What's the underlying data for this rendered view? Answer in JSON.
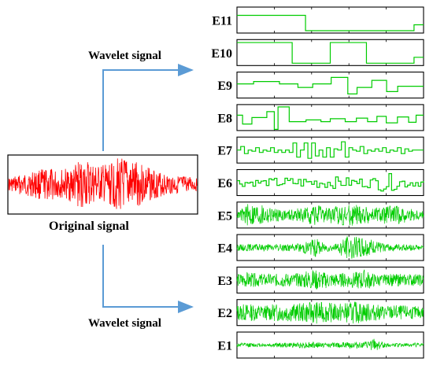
{
  "original": {
    "caption": "Original signal",
    "color": "#ff0000"
  },
  "arrows": {
    "top_label": "Wavelet signal",
    "bottom_label": "Wavelet signal",
    "color": "#5b9bd5"
  },
  "components": {
    "color": "#00cc00",
    "items": [
      {
        "label": "E11",
        "kind": "step",
        "levels": [
          0.4,
          0.4,
          0.4,
          0.4,
          0.4,
          0.4,
          0.4,
          0.4,
          0.4,
          0.4,
          0.4,
          0.4,
          0.4,
          0.4,
          0.4,
          0.4,
          0.4,
          0.4,
          0.4,
          0.4,
          0.4,
          0.4,
          0.4,
          0.4,
          0.4,
          0.4,
          0.4,
          0.4,
          0.4,
          0.4,
          0.4,
          0.4,
          0.4,
          0.4,
          0.4,
          0.4,
          -0.9,
          -0.9,
          -0.9,
          -0.9,
          -0.9,
          -0.9,
          -0.9,
          -0.9,
          -0.9,
          -0.9,
          -0.9,
          -0.9,
          -0.9,
          -0.9,
          -0.9,
          -0.9,
          -0.9,
          -0.9,
          -0.9,
          -0.9,
          -0.9,
          -0.9,
          -0.9,
          -0.9,
          -0.9,
          -0.9,
          -0.9,
          -0.9,
          -0.9,
          -0.9,
          -0.9,
          -0.9,
          -0.9,
          -0.9,
          -0.9,
          -0.9,
          -0.9,
          -0.9,
          -0.9,
          -0.9,
          -0.9,
          -0.9,
          -0.9,
          -0.9,
          -0.9,
          -0.9,
          -0.9,
          -0.9,
          -0.9,
          -0.9,
          -0.9,
          -0.9,
          -0.9,
          -0.9,
          -0.9,
          -0.9,
          -0.9,
          -0.4,
          -0.4,
          -0.4,
          -0.4,
          -0.4
        ]
      },
      {
        "label": "E10",
        "kind": "step",
        "levels": [
          0.85,
          0.85,
          0.85,
          0.85,
          0.85,
          0.85,
          0.85,
          0.85,
          0.85,
          0.85,
          0.85,
          0.85,
          0.85,
          0.85,
          0.85,
          0.85,
          0.85,
          0.85,
          0.85,
          0.85,
          0.85,
          0.85,
          0.85,
          0.85,
          0.85,
          0.85,
          0.85,
          0.85,
          0.85,
          -0.9,
          -0.9,
          -0.9,
          -0.9,
          -0.9,
          -0.9,
          -0.9,
          -0.9,
          -0.9,
          -0.9,
          -0.9,
          -0.9,
          -0.9,
          -0.9,
          -0.9,
          -0.9,
          -0.9,
          -0.9,
          -0.9,
          -0.9,
          0.85,
          0.85,
          0.85,
          0.85,
          0.85,
          0.85,
          0.85,
          0.85,
          0.85,
          0.85,
          0.85,
          0.85,
          0.85,
          0.85,
          0.85,
          0.85,
          0.85,
          0.85,
          0.85,
          -0.9,
          -0.9,
          -0.9,
          -0.9,
          -0.9,
          -0.9,
          -0.9,
          -0.9,
          -0.9,
          -0.9,
          -0.9,
          -0.9,
          -0.9,
          -0.9,
          -0.9,
          -0.9,
          -0.9,
          -0.9,
          -0.9,
          -0.9,
          -0.9,
          -0.9,
          -0.9,
          -0.9,
          -0.9,
          -0.4,
          -0.4,
          -0.4,
          -0.4,
          -0.4
        ]
      },
      {
        "label": "E9",
        "kind": "step",
        "levels": [
          0.1,
          0.1,
          0.1,
          0.1,
          0.1,
          0.1,
          0.1,
          0.1,
          0.1,
          0.3,
          0.3,
          0.3,
          0.3,
          0.3,
          0.3,
          0.3,
          0.3,
          0.3,
          0.3,
          0.3,
          0.3,
          0.3,
          0.3,
          0.1,
          0.1,
          0.1,
          0.1,
          0.1,
          0.1,
          0.1,
          0.1,
          0.1,
          0.1,
          -0.2,
          -0.2,
          -0.2,
          -0.2,
          -0.2,
          -0.2,
          -0.2,
          -0.2,
          0.1,
          0.1,
          0.1,
          0.1,
          0.1,
          0.1,
          0.1,
          0.1,
          0.1,
          0.1,
          0.65,
          0.65,
          0.65,
          0.65,
          0.65,
          0.65,
          0.65,
          0.65,
          0.65,
          -0.75,
          -0.75,
          -0.75,
          -0.75,
          -0.75,
          -0.2,
          -0.2,
          -0.2,
          -0.2,
          -0.2,
          -0.2,
          -0.2,
          -0.2,
          0.4,
          0.4,
          0.4,
          0.4,
          0.4,
          0.4,
          0.4,
          0.4,
          -0.55,
          -0.55,
          -0.55,
          -0.55,
          -0.55,
          -0.55,
          -0.1,
          -0.1,
          -0.1,
          -0.1,
          -0.1,
          -0.1,
          -0.1,
          -0.1,
          -0.1,
          -0.1,
          -0.1,
          -0.1,
          -0.1,
          -0.1
        ]
      },
      {
        "label": "E8",
        "kind": "step",
        "levels": [
          0.2,
          0.2,
          0.2,
          -0.55,
          -0.55,
          -0.55,
          -0.55,
          -0.55,
          0.0,
          0.0,
          0.0,
          0.0,
          0.0,
          0.0,
          0.0,
          0.0,
          0.5,
          0.5,
          0.5,
          0.5,
          -1.0,
          -1.0,
          0.9,
          0.9,
          0.9,
          0.9,
          0.9,
          0.9,
          -0.35,
          -0.35,
          -0.35,
          -0.35,
          -0.35,
          -0.35,
          -0.35,
          -0.35,
          -0.35,
          -0.2,
          -0.2,
          -0.2,
          -0.2,
          -0.2,
          -0.2,
          -0.2,
          -0.2,
          -0.35,
          -0.35,
          -0.35,
          -0.35,
          -0.35,
          -0.1,
          -0.1,
          -0.1,
          -0.1,
          -0.1,
          -0.1,
          -0.1,
          -0.1,
          -0.35,
          -0.35,
          -0.35,
          -0.35,
          -0.35,
          -0.35,
          -0.05,
          -0.05,
          -0.05,
          -0.05,
          -0.05,
          -0.05,
          -0.35,
          -0.35,
          -0.35,
          -0.35,
          -0.35,
          0.1,
          0.1,
          0.1,
          0.1,
          0.1,
          -0.45,
          -0.45,
          -0.45,
          -0.45,
          -0.45,
          -0.45,
          0.05,
          0.05,
          0.05,
          0.05,
          0.05,
          0.05,
          -0.4,
          -0.4,
          -0.4,
          -0.4,
          0.2,
          0.2,
          0.2,
          0.2
        ]
      },
      {
        "label": "E7",
        "kind": "step",
        "levels": [
          0.0,
          0.0,
          0.3,
          0.3,
          -0.3,
          -0.3,
          0.0,
          0.0,
          -0.1,
          -0.1,
          0.2,
          0.2,
          -0.2,
          -0.2,
          0.0,
          0.0,
          -0.1,
          -0.1,
          0.2,
          0.2,
          -0.2,
          -0.2,
          0.0,
          0.0,
          -0.2,
          -0.2,
          0.0,
          0.0,
          -0.2,
          -0.2,
          0.6,
          0.6,
          -0.6,
          -0.6,
          0.0,
          0.0,
          0.6,
          0.6,
          -0.7,
          -0.7,
          0.6,
          0.6,
          -0.5,
          -0.5,
          0.0,
          0.0,
          -0.6,
          -0.6,
          0.2,
          0.2,
          -0.6,
          -0.6,
          0.1,
          0.1,
          0.0,
          0.0,
          0.7,
          0.7,
          -0.6,
          -0.6,
          0.2,
          0.2,
          0.0,
          0.0,
          -0.1,
          -0.1,
          0.3,
          0.3,
          -0.3,
          -0.3,
          0.0,
          0.0,
          -0.1,
          -0.1,
          0.1,
          0.1,
          -0.1,
          -0.1,
          0.2,
          0.2,
          -0.2,
          -0.2,
          0.0,
          0.0,
          -0.1,
          -0.1,
          0.2,
          0.2,
          -0.3,
          -0.3,
          0.1,
          0.1,
          -0.1,
          -0.1,
          0.0,
          0.0,
          0.0,
          0.0,
          0.0,
          0.0
        ]
      },
      {
        "label": "E6",
        "kind": "osc",
        "amp": [
          0.35,
          0.35,
          0.3,
          0.3,
          0.45,
          0.45,
          0.45,
          0.45,
          0.5,
          0.5,
          0.5,
          0.45,
          0.4,
          0.45,
          0.45,
          0.9,
          0.6,
          0.5,
          0.35,
          0.3
        ],
        "period": 4,
        "seed": 6
      },
      {
        "label": "E5",
        "kind": "noise",
        "amp": [
          0.2,
          0.95,
          1.0,
          0.8,
          0.55,
          0.45,
          0.55,
          0.7,
          0.85,
          0.7,
          0.75,
          0.9,
          0.95,
          0.8,
          0.6,
          0.75,
          0.85,
          0.65,
          0.5,
          0.35
        ],
        "seed": 5
      },
      {
        "label": "E4",
        "kind": "noise",
        "amp": [
          0.25,
          0.3,
          0.3,
          0.3,
          0.3,
          0.3,
          0.3,
          0.55,
          0.8,
          0.35,
          0.3,
          0.95,
          1.0,
          0.9,
          0.55,
          0.35,
          0.3,
          0.3,
          0.25,
          0.2
        ],
        "seed": 4
      },
      {
        "label": "E3",
        "kind": "noise",
        "amp": [
          0.55,
          0.65,
          0.55,
          0.5,
          0.55,
          0.6,
          0.55,
          0.75,
          0.9,
          0.7,
          0.6,
          0.6,
          0.7,
          0.9,
          0.55,
          0.45,
          0.55,
          0.5,
          0.5,
          0.5
        ],
        "seed": 3
      },
      {
        "label": "E2",
        "kind": "noise",
        "amp": [
          0.7,
          0.75,
          0.7,
          0.65,
          0.75,
          0.8,
          0.75,
          0.85,
          0.95,
          0.85,
          0.8,
          0.85,
          0.95,
          0.85,
          0.7,
          0.6,
          0.65,
          0.6,
          0.55,
          0.5
        ],
        "seed": 2
      },
      {
        "label": "E1",
        "kind": "noise",
        "amp": [
          0.15,
          0.2,
          0.15,
          0.15,
          0.2,
          0.2,
          0.2,
          0.3,
          0.25,
          0.2,
          0.2,
          0.25,
          0.3,
          0.25,
          0.55,
          0.2,
          0.15,
          0.15,
          0.2,
          0.15
        ],
        "seed": 1
      }
    ]
  }
}
